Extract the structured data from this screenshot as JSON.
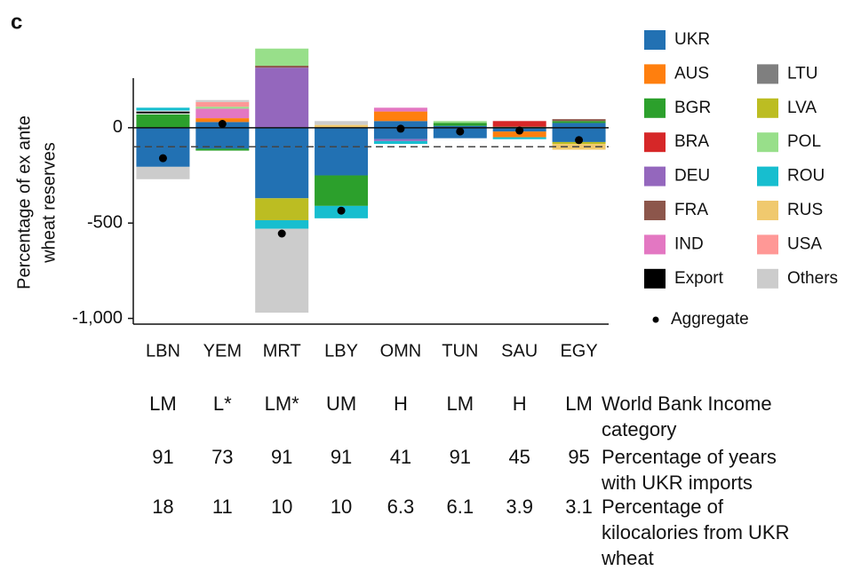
{
  "chart_data": {
    "type": "bar",
    "panel_label": "c",
    "y_label": [
      "Percentage of ex ante",
      "wheat reserves"
    ],
    "categories": [
      "LBN",
      "YEM",
      "MRT",
      "LBY",
      "OMN",
      "TUN",
      "SAU",
      "EGY"
    ],
    "ylim": [
      -1030,
      260
    ],
    "yticks": [
      0,
      -500,
      {
        "value": -1000,
        "label": "-1,000"
      }
    ],
    "reference_line": -100,
    "series": [
      {
        "name": "UKR",
        "color": "#2271b3",
        "values": [
          0,
          30,
          0,
          0,
          35,
          10,
          0,
          25
        ]
      },
      {
        "name": "UKR",
        "color": "#2271b3",
        "values": [
          -205,
          -110,
          -370,
          -250,
          -60,
          -55,
          -20,
          -75
        ]
      },
      {
        "name": "AUS",
        "color": "#ff7f0e",
        "values": [
          0,
          20,
          0,
          0,
          50,
          0,
          -30,
          0
        ]
      },
      {
        "name": "BGR",
        "color": "#2ca02c",
        "values": [
          70,
          -10,
          0,
          -160,
          0,
          15,
          5,
          10
        ]
      },
      {
        "name": "BRA",
        "color": "#d62728",
        "values": [
          0,
          0,
          0,
          0,
          0,
          0,
          30,
          0
        ]
      },
      {
        "name": "DEU",
        "color": "#9467bd",
        "values": [
          0,
          0,
          315,
          0,
          -10,
          0,
          0,
          0
        ]
      },
      {
        "name": "FRA",
        "color": "#8c564b",
        "values": [
          0,
          0,
          10,
          0,
          0,
          0,
          0,
          10
        ]
      },
      {
        "name": "IND",
        "color": "#e377c2",
        "values": [
          0,
          50,
          0,
          0,
          20,
          0,
          0,
          0
        ]
      },
      {
        "name": "Export",
        "color": "#000000",
        "values": [
          20,
          0,
          0,
          0,
          0,
          0,
          0,
          0
        ]
      },
      {
        "name": "LTU",
        "color": "#7f7f7f",
        "values": [
          0,
          0,
          0,
          0,
          0,
          0,
          0,
          0
        ]
      },
      {
        "name": "LVA",
        "color": "#bcbd22",
        "values": [
          0,
          0,
          -115,
          0,
          0,
          0,
          0,
          -10
        ]
      },
      {
        "name": "POL",
        "color": "#98df8a",
        "values": [
          0,
          10,
          90,
          0,
          0,
          10,
          0,
          0
        ]
      },
      {
        "name": "ROU",
        "color": "#17becf",
        "values": [
          15,
          0,
          -45,
          -65,
          -15,
          0,
          -10,
          0
        ]
      },
      {
        "name": "RUS",
        "color": "#f0c96e",
        "values": [
          0,
          0,
          0,
          15,
          0,
          0,
          0,
          -30
        ]
      },
      {
        "name": "USA",
        "color": "#ff9896",
        "values": [
          0,
          25,
          0,
          0,
          0,
          0,
          0,
          0
        ]
      },
      {
        "name": "Others",
        "color": "#cccccc",
        "values": [
          -65,
          10,
          -440,
          20,
          0,
          0,
          0,
          0
        ]
      }
    ],
    "aggregate": {
      "name": "Aggregate",
      "values": [
        -160,
        20,
        -555,
        -435,
        -5,
        -20,
        -15,
        -65
      ]
    },
    "table": [
      {
        "label": "World Bank Income category",
        "values": [
          "LM",
          "L*",
          "LM*",
          "UM",
          "H",
          "LM",
          "H",
          "LM"
        ]
      },
      {
        "label": "Percentage of years with UKR imports",
        "values": [
          91,
          73,
          91,
          91,
          41,
          91,
          45,
          95
        ]
      },
      {
        "label": "Percentage of kilocalories from UKR wheat",
        "values": [
          18,
          11,
          10,
          10,
          6.3,
          6.1,
          3.9,
          3.1
        ]
      }
    ]
  }
}
